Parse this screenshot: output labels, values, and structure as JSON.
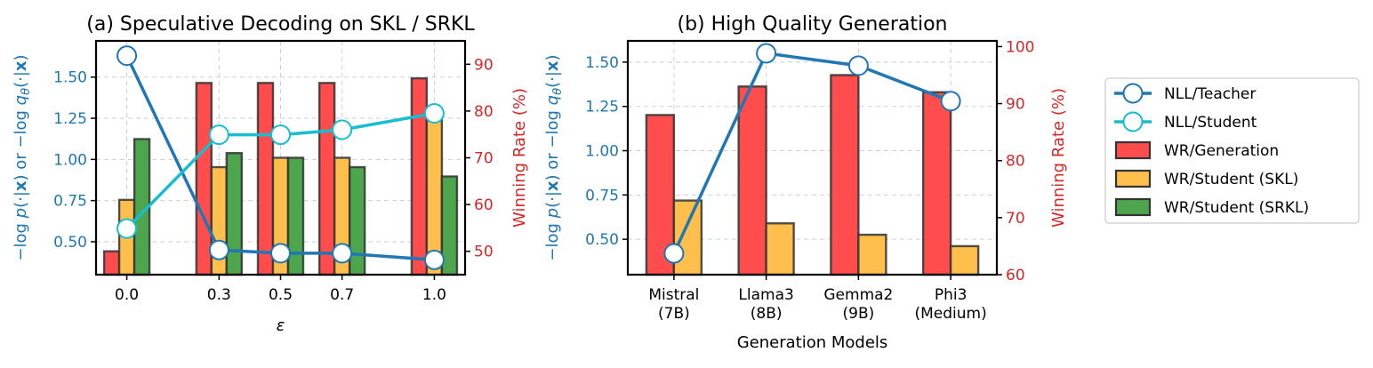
{
  "colors": {
    "teacher": "#1f77b4",
    "student": "#17becf",
    "generation": "#ff4d4d",
    "skl": "#ffbf4d",
    "srkl": "#4da64d",
    "right_axis": "#d62728",
    "left_axis": "#1f77b4"
  },
  "legend": {
    "items": [
      {
        "label": "NLL/Teacher",
        "kind": "line",
        "color_key": "teacher"
      },
      {
        "label": "NLL/Student",
        "kind": "line",
        "color_key": "student"
      },
      {
        "label": "WR/Generation",
        "kind": "bar",
        "color_key": "generation"
      },
      {
        "label": "WR/Student (SKL)",
        "kind": "bar",
        "color_key": "skl"
      },
      {
        "label": "WR/Student (SRKL)",
        "kind": "bar",
        "color_key": "srkl"
      }
    ]
  },
  "chart_data": [
    {
      "type": "bar",
      "title": "(a) Speculative Decoding on SKL / SRKL",
      "xlabel": "ε",
      "ylabel_left": "−log p(·|x) or −log qθ(·|x)",
      "ylabel_right": "Winning Rate (%)",
      "categories": [
        "0.0",
        "0.3",
        "0.5",
        "0.7",
        "1.0"
      ],
      "x": [
        0.0,
        0.3,
        0.5,
        0.7,
        1.0
      ],
      "xlim": [
        -0.1,
        1.1
      ],
      "ylim_left": [
        0.3,
        1.72
      ],
      "ylim_right": [
        45,
        95
      ],
      "yticks_left": [
        "0.50",
        "0.75",
        "1.00",
        "1.25",
        "1.50"
      ],
      "yticks_right": [
        "50",
        "60",
        "70",
        "80",
        "90"
      ],
      "bar_series": [
        {
          "name": "WR/Generation",
          "color_key": "generation",
          "values": [
            50,
            86,
            86,
            86,
            87
          ]
        },
        {
          "name": "WR/Student (SKL)",
          "color_key": "skl",
          "values": [
            61,
            68,
            70,
            70,
            78
          ]
        },
        {
          "name": "WR/Student (SRKL)",
          "color_key": "srkl",
          "values": [
            74,
            71,
            70,
            68,
            66
          ]
        }
      ],
      "line_series": [
        {
          "name": "NLL/Teacher",
          "color_key": "teacher",
          "values": [
            1.63,
            0.45,
            0.43,
            0.43,
            0.39
          ]
        },
        {
          "name": "NLL/Student",
          "color_key": "student",
          "values": [
            0.58,
            1.15,
            1.15,
            1.18,
            1.28
          ]
        }
      ]
    },
    {
      "type": "bar",
      "title": "(b) High Quality Generation",
      "xlabel": "Generation Models",
      "ylabel_left": "−log p(·|x) or −log qθ(·|x)",
      "ylabel_right": "Winning Rate (%)",
      "categories": [
        "Mistral (7B)",
        "Llama3 (8B)",
        "Gemma2 (9B)",
        "Phi3 (Medium)"
      ],
      "category_lines": [
        [
          "Mistral",
          "(7B)"
        ],
        [
          "Llama3",
          "(8B)"
        ],
        [
          "Gemma2",
          "(9B)"
        ],
        [
          "Phi3",
          "(Medium)"
        ]
      ],
      "ylim_left": [
        0.3,
        1.62
      ],
      "ylim_right": [
        60,
        101
      ],
      "yticks_left": [
        "0.50",
        "0.75",
        "1.00",
        "1.25",
        "1.50"
      ],
      "yticks_right": [
        "60",
        "70",
        "80",
        "90",
        "100"
      ],
      "bar_series": [
        {
          "name": "WR/Generation",
          "color_key": "generation",
          "values": [
            88,
            93,
            95,
            92
          ]
        },
        {
          "name": "WR/Student (SKL)",
          "color_key": "skl",
          "values": [
            73,
            69,
            67,
            65
          ]
        }
      ],
      "line_series": [
        {
          "name": "NLL/Teacher",
          "color_key": "teacher",
          "values": [
            0.42,
            1.55,
            1.48,
            1.28
          ]
        }
      ]
    }
  ]
}
